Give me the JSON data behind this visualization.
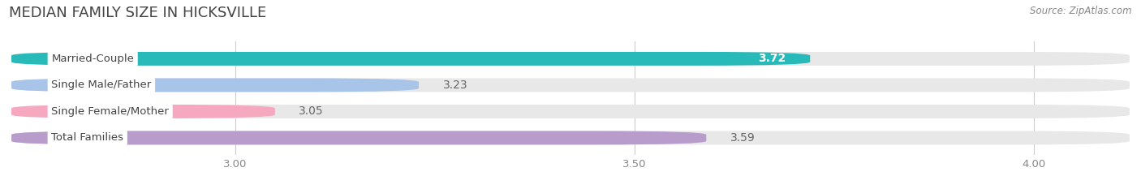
{
  "title": "MEDIAN FAMILY SIZE IN HICKSVILLE",
  "source": "Source: ZipAtlas.com",
  "categories": [
    "Married-Couple",
    "Single Male/Father",
    "Single Female/Mother",
    "Total Families"
  ],
  "values": [
    3.72,
    3.23,
    3.05,
    3.59
  ],
  "bar_colors": [
    "#28b9b9",
    "#a8c4e8",
    "#f5a8c0",
    "#b89dcc"
  ],
  "track_color": "#e8e8e8",
  "label_color": "#555555",
  "xlim_min": 2.72,
  "xlim_max": 4.12,
  "xticks": [
    3.0,
    3.5,
    4.0
  ],
  "bar_height": 0.52,
  "background_color": "#ffffff",
  "plot_bg_color": "#ffffff",
  "value_fontsize": 10,
  "label_fontsize": 9.5,
  "title_fontsize": 13,
  "value_inside_color": "#ffffff",
  "value_outside_color": "#666666"
}
